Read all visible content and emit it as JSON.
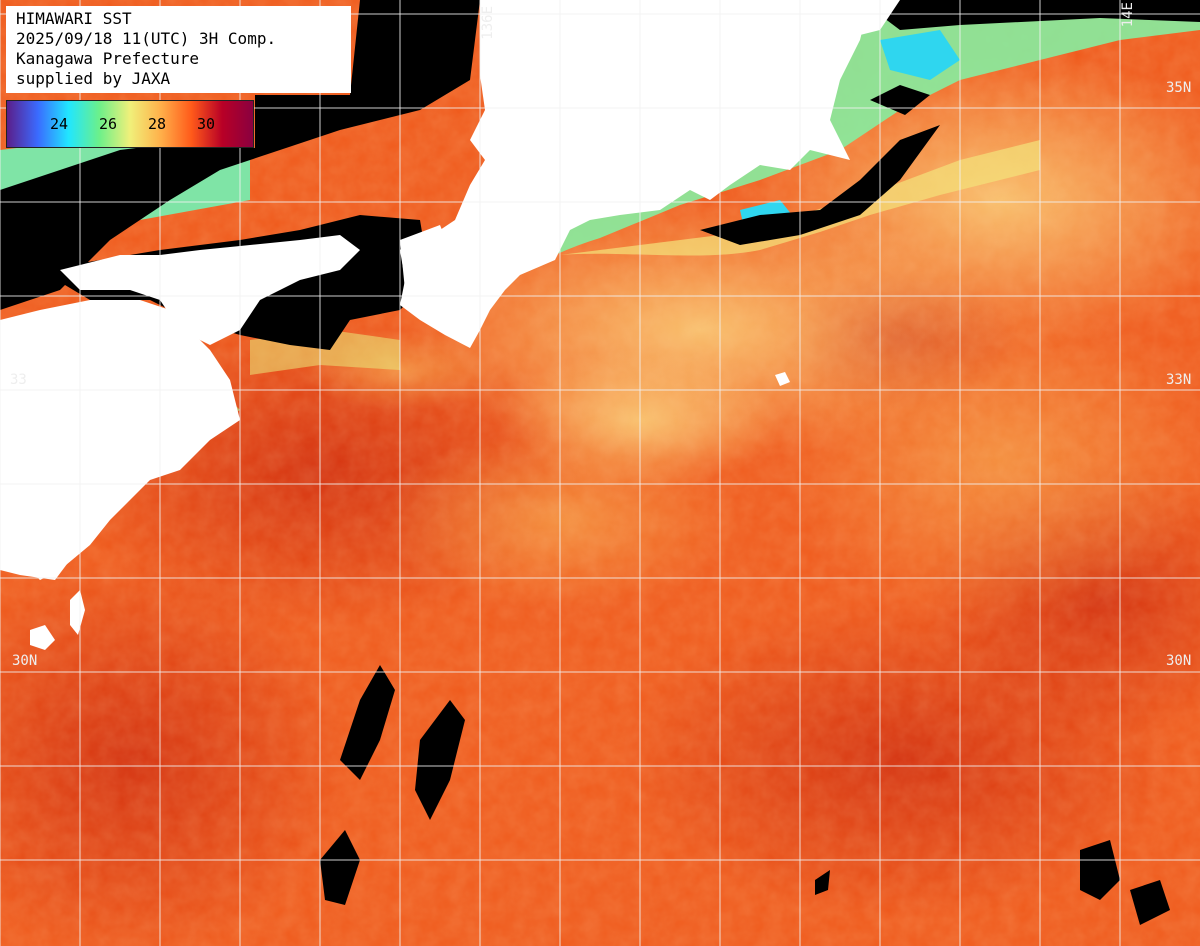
{
  "header": {
    "line1": "HIMAWARI SST",
    "line2": "2025/09/18 11(UTC) 3H Comp.",
    "line3": "Kanagawa Prefecture",
    "line4": "supplied by JAXA"
  },
  "legend": {
    "ticks": [
      "24",
      "26",
      "28",
      "30"
    ],
    "colors": [
      "#5b1e8a",
      "#3a6bff",
      "#21e6ff",
      "#6cf08a",
      "#f0f07a",
      "#ffb04a",
      "#ff5a1a",
      "#b80026",
      "#8a0040"
    ]
  },
  "grid_labels": {
    "lon_136": "136E",
    "lon_140": "14E",
    "lat_35_right": "35N",
    "lat_33_left": "33",
    "lat_33_right": "33N",
    "lat_30_left": "30N",
    "lat_30_right": "30N"
  },
  "map_colors": {
    "land": "#ffffff",
    "no_data": "#000000",
    "grid": "#f2f2f2",
    "sst_warm": "#ef5a1c",
    "sst_hot": "#d8320e",
    "sst_mild": "#f7b057",
    "sst_cool": "#80eca2",
    "sst_cold": "#2ad7ee"
  }
}
